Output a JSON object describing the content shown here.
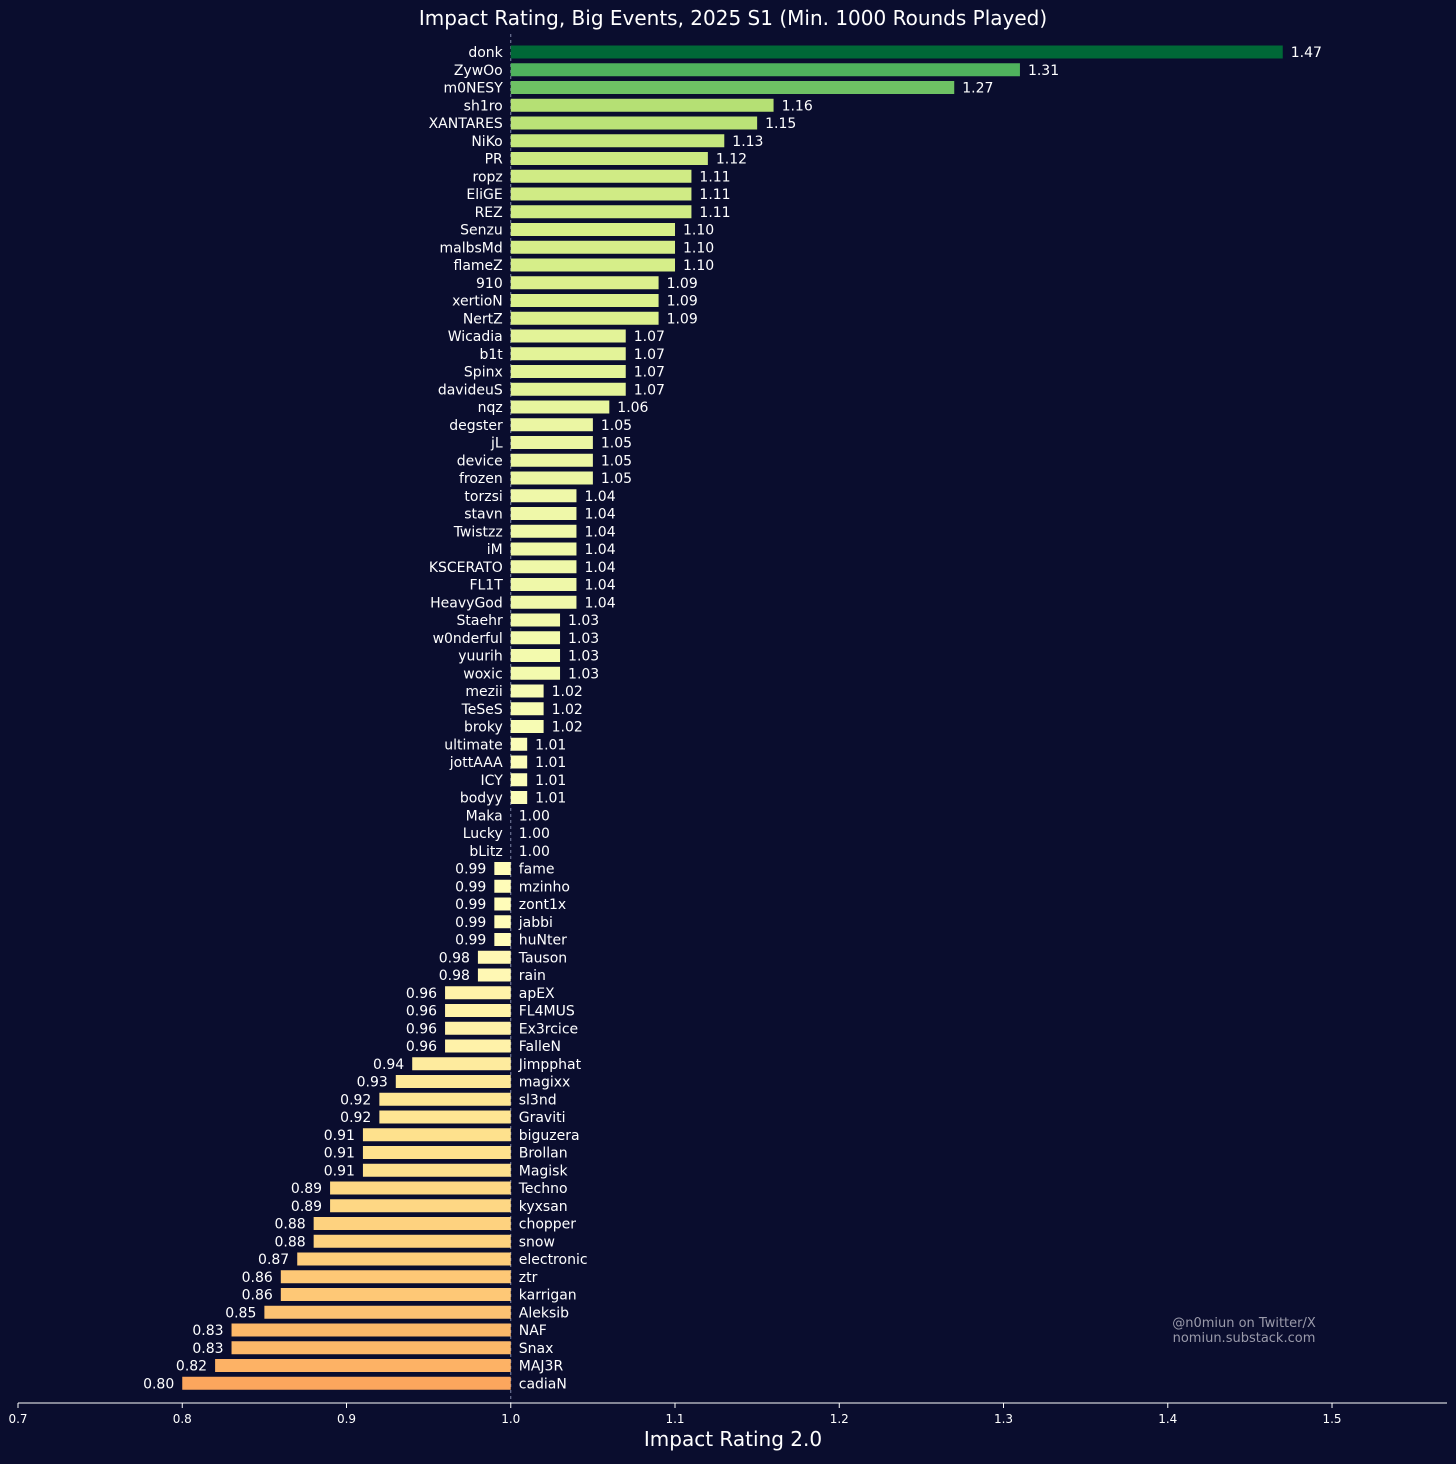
{
  "chart_data": {
    "type": "bar",
    "orientation": "horizontal",
    "title": "Impact Rating, Big Events, 2025 S1 (Min. 1000 Rounds Played)",
    "xlabel": "Impact Rating 2.0",
    "ylabel": "",
    "baseline": 1.0,
    "xlim": [
      0.7,
      1.57
    ],
    "xticks": [
      "0.7",
      "0.8",
      "0.9",
      "1.0",
      "1.1",
      "1.2",
      "1.3",
      "1.4",
      "1.5"
    ],
    "grid": false,
    "legend": "none",
    "colormap": "RdYlGn",
    "categories": [
      "donk",
      "ZywOo",
      "m0NESY",
      "sh1ro",
      "XANTARES",
      "NiKo",
      "PR",
      "ropz",
      "EliGE",
      "REZ",
      "Senzu",
      "malbsMd",
      "flameZ",
      "910",
      "xertioN",
      "NertZ",
      "Wicadia",
      "b1t",
      "Spinx",
      "davideuS",
      "nqz",
      "degster",
      "jL",
      "device",
      "frozen",
      "torzsi",
      "stavn",
      "Twistzz",
      "iM",
      "KSCERATO",
      "FL1T",
      "HeavyGod",
      "Staehr",
      "w0nderful",
      "yuurih",
      "woxic",
      "mezii",
      "TeSeS",
      "broky",
      "ultimate",
      "jottAAA",
      "ICY",
      "bodyy",
      "Maka",
      "Lucky",
      "bLitz",
      "fame",
      "mzinho",
      "zont1x",
      "jabbi",
      "huNter",
      "Tauson",
      "rain",
      "apEX",
      "FL4MUS",
      "Ex3rcice",
      "FalleN",
      "Jimpphat",
      "magixx",
      "sl3nd",
      "Graviti",
      "biguzera",
      "Brollan",
      "Magisk",
      "Techno",
      "kyxsan",
      "chopper",
      "snow",
      "electronic",
      "ztr",
      "karrigan",
      "Aleksib",
      "NAF",
      "Snax",
      "MAJ3R",
      "cadiaN"
    ],
    "values": [
      1.47,
      1.31,
      1.27,
      1.16,
      1.15,
      1.13,
      1.12,
      1.11,
      1.11,
      1.11,
      1.1,
      1.1,
      1.1,
      1.09,
      1.09,
      1.09,
      1.07,
      1.07,
      1.07,
      1.07,
      1.06,
      1.05,
      1.05,
      1.05,
      1.05,
      1.04,
      1.04,
      1.04,
      1.04,
      1.04,
      1.04,
      1.04,
      1.03,
      1.03,
      1.03,
      1.03,
      1.02,
      1.02,
      1.02,
      1.01,
      1.01,
      1.01,
      1.01,
      1.0,
      1.0,
      1.0,
      0.99,
      0.99,
      0.99,
      0.99,
      0.99,
      0.98,
      0.98,
      0.96,
      0.96,
      0.96,
      0.96,
      0.94,
      0.93,
      0.92,
      0.92,
      0.91,
      0.91,
      0.91,
      0.89,
      0.89,
      0.88,
      0.88,
      0.87,
      0.86,
      0.86,
      0.85,
      0.83,
      0.83,
      0.82,
      0.8
    ],
    "annotation": [
      "@n0miun on Twitter/X",
      "nomiun.substack.com"
    ]
  }
}
